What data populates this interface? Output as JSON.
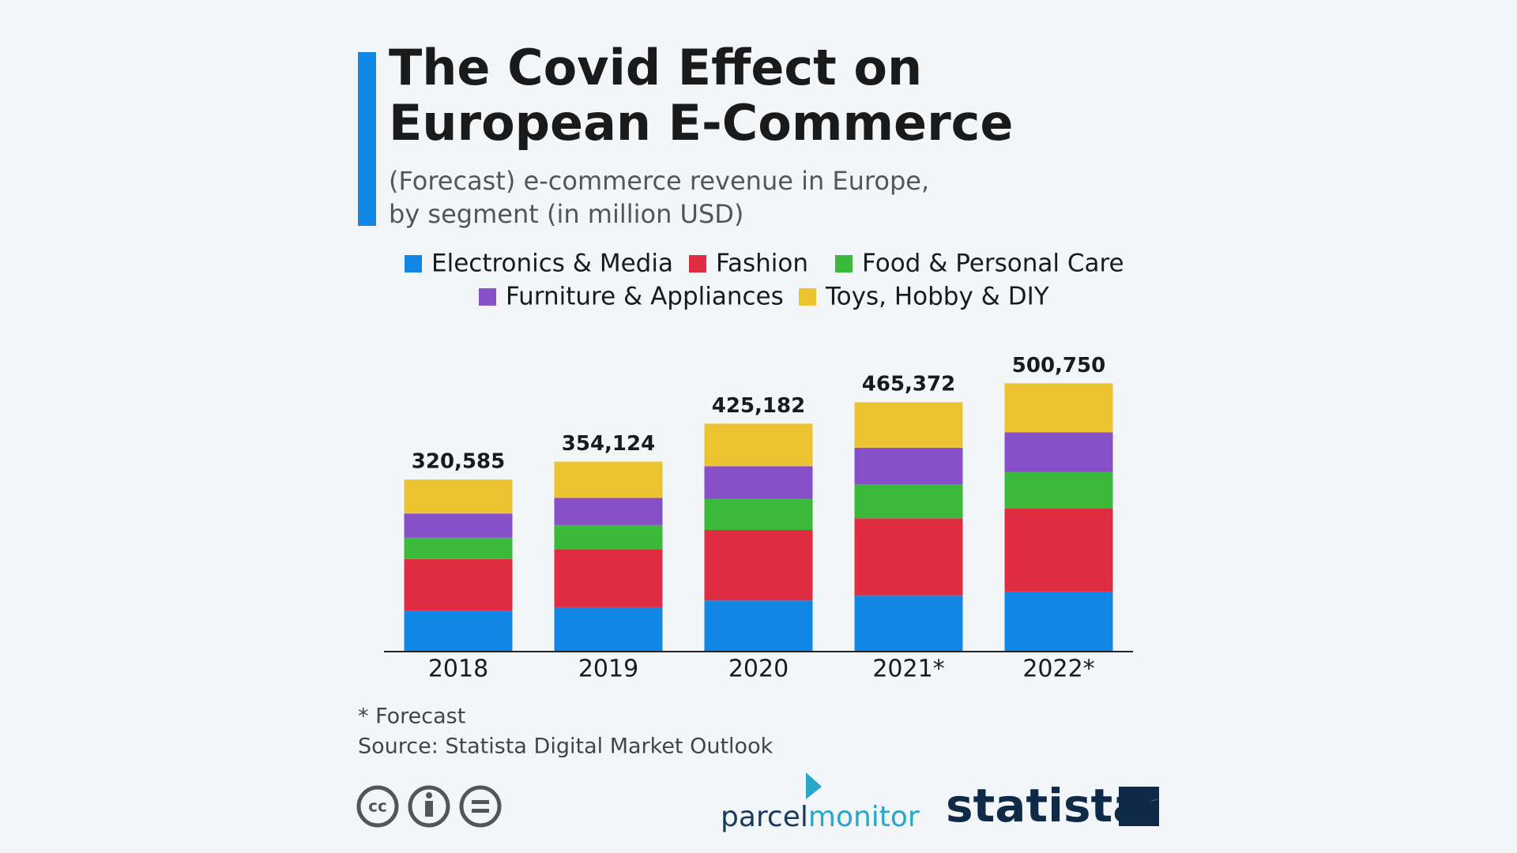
{
  "chart_data": {
    "type": "stacked_bar",
    "title": [
      "The Covid Effect on",
      "European E-Commerce"
    ],
    "subtitle": [
      "(Forecast) e-commerce revenue in Europe,",
      "by segment (in million USD)"
    ],
    "categories": [
      "2018",
      "2019",
      "2020",
      "2021*",
      "2022*"
    ],
    "series": [
      {
        "name": "Electronics & Media",
        "color": "#1187e5",
        "values": [
          74200,
          81500,
          94100,
          103200,
          110400
        ]
      },
      {
        "name": "Fashion",
        "color": "#e02d42",
        "values": [
          97700,
          108600,
          132100,
          144800,
          155700
        ]
      },
      {
        "name": "Food & Personal Care",
        "color": "#3bb93b",
        "values": [
          39800,
          45300,
          57900,
          63400,
          68800
        ]
      },
      {
        "name": "Furniture & Appliances",
        "color": "#8650c8",
        "values": [
          45300,
          50700,
          61500,
          68800,
          74200
        ]
      },
      {
        "name": "Toys, Hobby & DIY",
        "color": "#ecc330",
        "values": [
          63585,
          68024,
          79582,
          85172,
          91650
        ]
      }
    ],
    "totals": [
      320585,
      354124,
      425182,
      465372,
      500750
    ],
    "total_labels": [
      "320,585",
      "354,124",
      "425,182",
      "465,372",
      "500,750"
    ],
    "ylim": [
      0,
      550000
    ],
    "footnotes": [
      "* Forecast",
      "Source: Statista Digital Market Outlook"
    ],
    "logos": {
      "parcel": "parcel",
      "monitor": "monitor",
      "statista": "statista",
      "cc": [
        "cc"
      ]
    }
  }
}
